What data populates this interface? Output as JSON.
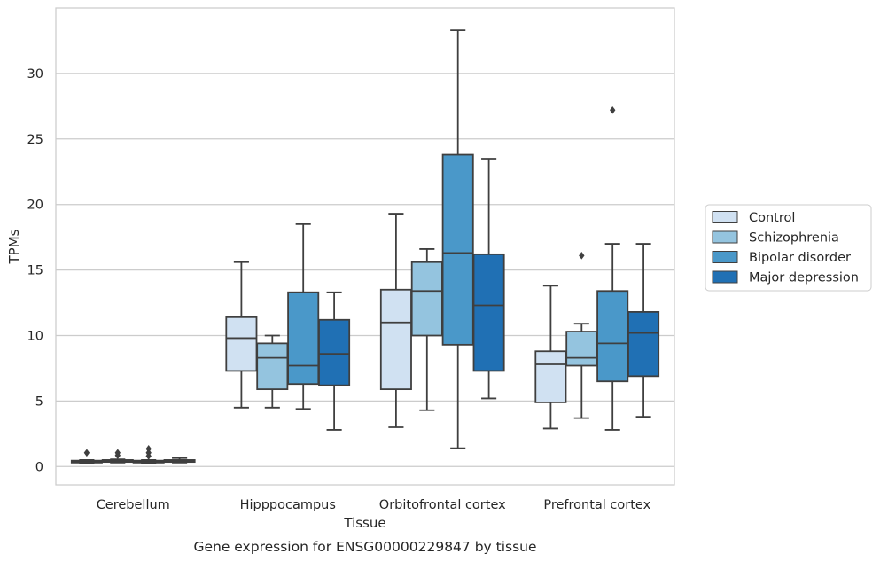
{
  "chart_data": {
    "type": "box",
    "caption": "Gene expression for ENSG00000229847 by tissue",
    "xlabel": "Tissue",
    "ylabel": "TPMs",
    "ylim": [
      -1.4,
      35
    ],
    "yticks": [
      0,
      5,
      10,
      15,
      20,
      25,
      30
    ],
    "categories": [
      "Cerebellum",
      "Hipppocampus",
      "Orbitofrontal cortex",
      "Prefrontal cortex"
    ],
    "grid": true,
    "legend_position": "right",
    "series": [
      {
        "name": "Control",
        "color": "#d0e1f2",
        "boxes": [
          {
            "whislo": 0.25,
            "q1": 0.3,
            "med": 0.35,
            "q3": 0.45,
            "whishi": 0.5,
            "fliers": [
              1.05
            ]
          },
          {
            "whislo": 4.5,
            "q1": 7.3,
            "med": 9.8,
            "q3": 11.4,
            "whishi": 15.6,
            "fliers": []
          },
          {
            "whislo": 3.0,
            "q1": 5.9,
            "med": 11.0,
            "q3": 13.5,
            "whishi": 19.3,
            "fliers": []
          },
          {
            "whislo": 2.9,
            "q1": 4.9,
            "med": 7.8,
            "q3": 8.8,
            "whishi": 13.8,
            "fliers": []
          }
        ]
      },
      {
        "name": "Schizophrenia",
        "color": "#94c4df",
        "boxes": [
          {
            "whislo": 0.3,
            "q1": 0.35,
            "med": 0.45,
            "q3": 0.5,
            "whishi": 0.55,
            "fliers": [
              0.85,
              1.05
            ]
          },
          {
            "whislo": 4.5,
            "q1": 5.9,
            "med": 8.3,
            "q3": 9.4,
            "whishi": 10.0,
            "fliers": []
          },
          {
            "whislo": 4.3,
            "q1": 10.0,
            "med": 13.4,
            "q3": 15.6,
            "whishi": 16.6,
            "fliers": []
          },
          {
            "whislo": 3.7,
            "q1": 7.7,
            "med": 8.3,
            "q3": 10.3,
            "whishi": 10.9,
            "fliers": [
              16.1
            ]
          }
        ]
      },
      {
        "name": "Bipolar disorder",
        "color": "#4a98c9",
        "boxes": [
          {
            "whislo": 0.25,
            "q1": 0.3,
            "med": 0.35,
            "q3": 0.45,
            "whishi": 0.5,
            "fliers": [
              0.8,
              1.05,
              1.35
            ]
          },
          {
            "whislo": 4.4,
            "q1": 6.3,
            "med": 7.7,
            "q3": 13.3,
            "whishi": 18.5,
            "fliers": []
          },
          {
            "whislo": 1.4,
            "q1": 9.3,
            "med": 16.3,
            "q3": 23.8,
            "whishi": 33.3,
            "fliers": []
          },
          {
            "whislo": 2.8,
            "q1": 6.5,
            "med": 9.4,
            "q3": 13.4,
            "whishi": 17.0,
            "fliers": [
              27.2
            ]
          }
        ]
      },
      {
        "name": "Major depression",
        "color": "#2070b4",
        "boxes": [
          {
            "whislo": 0.3,
            "q1": 0.35,
            "med": 0.45,
            "q3": 0.5,
            "whishi": 0.65,
            "fliers": []
          },
          {
            "whislo": 2.8,
            "q1": 6.2,
            "med": 8.6,
            "q3": 11.2,
            "whishi": 13.3,
            "fliers": []
          },
          {
            "whislo": 5.2,
            "q1": 7.3,
            "med": 12.3,
            "q3": 16.2,
            "whishi": 23.5,
            "fliers": []
          },
          {
            "whislo": 3.8,
            "q1": 6.9,
            "med": 10.2,
            "q3": 11.8,
            "whishi": 17.0,
            "fliers": []
          }
        ]
      }
    ]
  }
}
